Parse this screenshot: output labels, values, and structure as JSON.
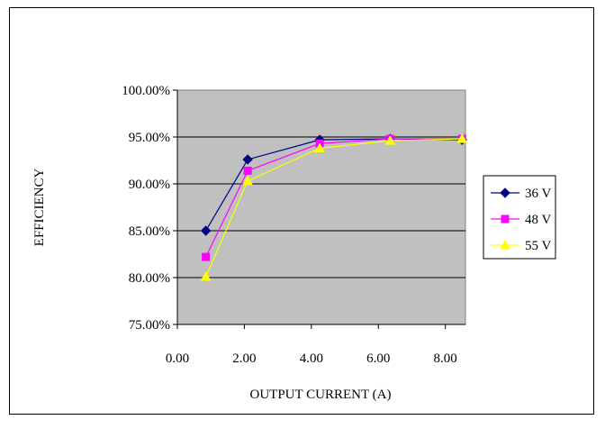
{
  "chart_data": {
    "type": "line",
    "title": "",
    "xlabel": "OUTPUT CURRENT (A)",
    "ylabel": "EFFICIENCY",
    "x_tick_labels": [
      "0.00",
      "2.00",
      "4.00",
      "6.00",
      "8.00"
    ],
    "y_tick_labels": [
      "75.00%",
      "80.00%",
      "85.00%",
      "90.00%",
      "95.00%",
      "100.00%"
    ],
    "xlim": [
      0,
      8.6
    ],
    "ylim": [
      75,
      100
    ],
    "grid": "horizontal major gridlines",
    "plot_background": "#c0c0c0",
    "legend_position": "right",
    "series": [
      {
        "name": "36 V",
        "color": "#000080",
        "marker": "diamond",
        "x": [
          0.85,
          2.1,
          4.25,
          6.35,
          8.5
        ],
        "values": [
          85.0,
          92.6,
          94.7,
          94.8,
          94.7
        ]
      },
      {
        "name": "48 V",
        "color": "#ff00ff",
        "marker": "square",
        "x": [
          0.85,
          2.1,
          4.25,
          6.35,
          8.5
        ],
        "values": [
          82.2,
          91.4,
          94.3,
          94.8,
          94.8
        ]
      },
      {
        "name": "55 V",
        "color": "#ffff00",
        "marker": "triangle",
        "x": [
          0.85,
          2.1,
          4.25,
          6.35,
          8.5
        ],
        "values": [
          80.1,
          90.3,
          93.8,
          94.6,
          94.8
        ]
      }
    ]
  }
}
